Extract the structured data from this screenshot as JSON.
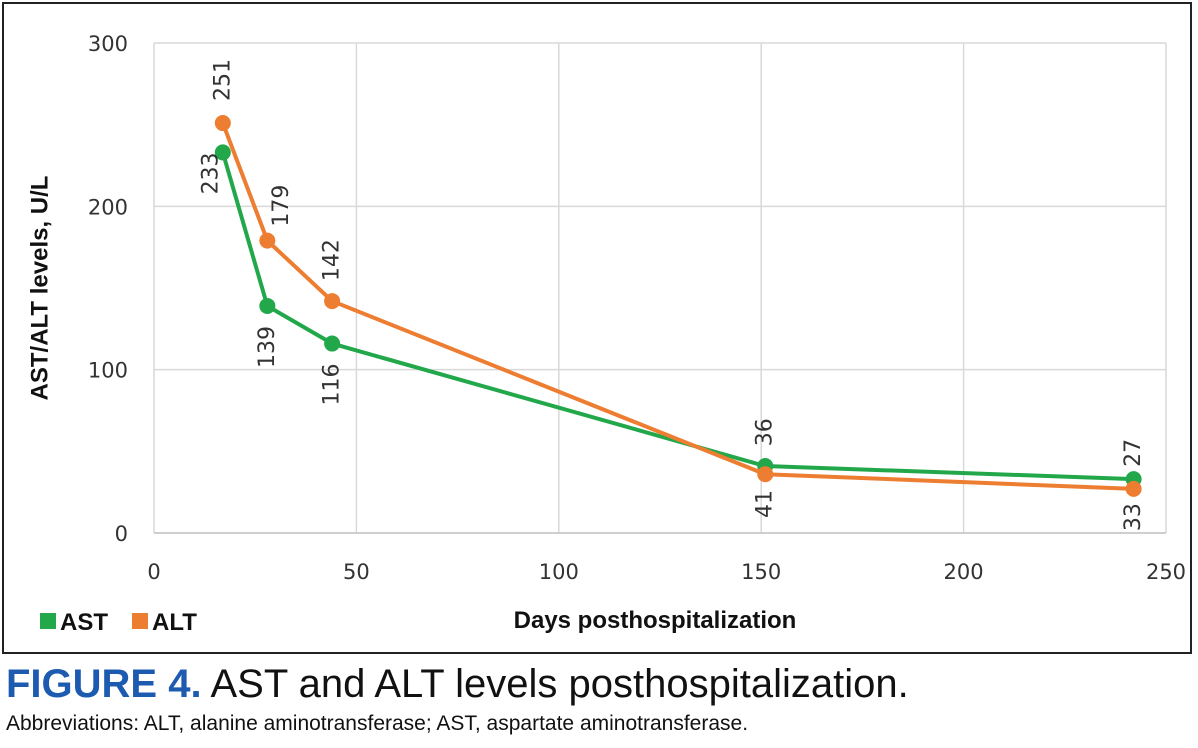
{
  "chart_data": {
    "type": "line",
    "xlabel": "Days posthospitalization",
    "ylabel": "AST/ALT levels, U/L",
    "xlim": [
      0,
      250
    ],
    "ylim": [
      0,
      300
    ],
    "xticks": [
      "0",
      "50",
      "100",
      "150",
      "200",
      "250"
    ],
    "yticks": [
      "0",
      "100",
      "200",
      "300"
    ],
    "grid": true,
    "legend_position": "bottom-left",
    "series": [
      {
        "name": "AST",
        "color": "#22a84a",
        "x": [
          17,
          28,
          44,
          151,
          242
        ],
        "y": [
          233,
          139,
          116,
          41,
          33
        ],
        "labels": [
          "233",
          "139",
          "116",
          "41",
          "33"
        ]
      },
      {
        "name": "ALT",
        "color": "#ed7d31",
        "x": [
          17,
          28,
          44,
          151,
          242
        ],
        "y": [
          251,
          179,
          142,
          36,
          27
        ],
        "labels": [
          "251",
          "179",
          "142",
          "36",
          "27"
        ]
      }
    ]
  },
  "caption": {
    "label": "FIGURE 4.",
    "title": " AST and ALT levels posthospitalization.",
    "abbreviations": "Abbreviations: ALT, alanine aminotransferase; AST, aspartate aminotransferase."
  }
}
